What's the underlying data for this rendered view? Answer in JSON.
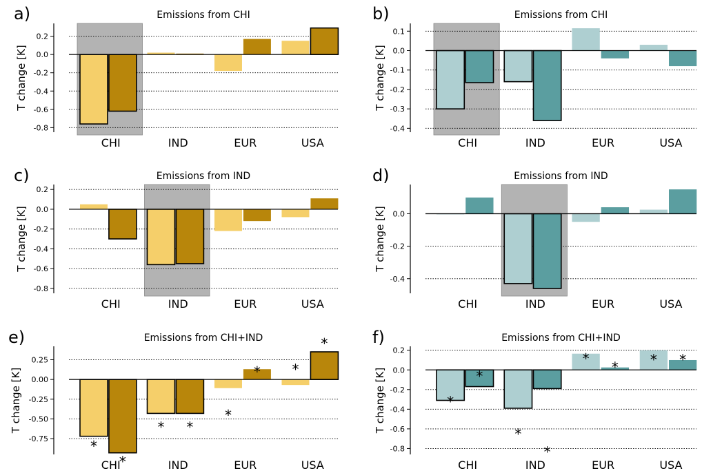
{
  "colors": {
    "gold_light": "#f5cf6a",
    "gold_dark": "#b8860b",
    "teal_light": "#aecfd1",
    "teal_dark": "#5b9ea0",
    "highlight": "#b3b3b3"
  },
  "chart_data": [
    {
      "id": "a",
      "panel_label": "a)",
      "type": "bar",
      "title": "Emissions from CHI",
      "ylabel": "T change [K]",
      "categories": [
        "CHI",
        "IND",
        "EUR",
        "USA"
      ],
      "ylim": [
        -0.85,
        0.34
      ],
      "yticks": [
        -0.8,
        -0.6,
        -0.4,
        -0.2,
        0.0,
        0.2
      ],
      "tick_labels": [
        "-0.8",
        "-0.6",
        "-0.4",
        "-0.2",
        "0.0",
        "0.2"
      ],
      "grid": "horizontal dotted",
      "highlight_category": "CHI",
      "palette": "gold",
      "series": [
        {
          "values": [
            -0.76,
            0.02,
            -0.18,
            0.15
          ],
          "color": "#f5cf6a",
          "outlined": [
            true,
            false,
            false,
            false
          ],
          "stars": [
            false,
            false,
            false,
            false
          ]
        },
        {
          "values": [
            -0.62,
            0.01,
            0.17,
            0.29
          ],
          "color": "#b8860b",
          "outlined": [
            true,
            false,
            false,
            true
          ],
          "stars": [
            false,
            false,
            false,
            false
          ]
        }
      ]
    },
    {
      "id": "b",
      "panel_label": "b)",
      "type": "bar",
      "title": "Emissions from CHI",
      "ylabel": "T change [K]",
      "categories": [
        "CHI",
        "IND",
        "EUR",
        "USA"
      ],
      "ylim": [
        -0.42,
        0.14
      ],
      "yticks": [
        -0.4,
        -0.3,
        -0.2,
        -0.1,
        0.0,
        0.1
      ],
      "tick_labels": [
        "-0.4",
        "-0.3",
        "-0.2",
        "-0.1",
        "0.0",
        "0.1"
      ],
      "grid": "horizontal dotted",
      "highlight_category": "CHI",
      "palette": "teal",
      "series": [
        {
          "values": [
            -0.3,
            -0.16,
            0.115,
            0.03
          ],
          "color": "#aecfd1",
          "outlined": [
            true,
            true,
            false,
            false
          ],
          "stars": [
            false,
            false,
            false,
            false
          ]
        },
        {
          "values": [
            -0.165,
            -0.36,
            -0.04,
            -0.08
          ],
          "color": "#5b9ea0",
          "outlined": [
            true,
            true,
            false,
            false
          ],
          "stars": [
            false,
            false,
            false,
            false
          ]
        }
      ]
    },
    {
      "id": "c",
      "panel_label": "c)",
      "type": "bar",
      "title": "Emissions from IND",
      "ylabel": "T change [K]",
      "categories": [
        "CHI",
        "IND",
        "EUR",
        "USA"
      ],
      "ylim": [
        -0.85,
        0.25
      ],
      "yticks": [
        -0.8,
        -0.6,
        -0.4,
        -0.2,
        0.0,
        0.2
      ],
      "tick_labels": [
        "-0.8",
        "-0.6",
        "-0.4",
        "-0.2",
        "0.0",
        "0.2"
      ],
      "grid": "horizontal dotted",
      "highlight_category": "IND",
      "palette": "gold",
      "series": [
        {
          "values": [
            0.05,
            -0.56,
            -0.22,
            -0.08
          ],
          "color": "#f5cf6a",
          "outlined": [
            false,
            true,
            false,
            false
          ],
          "stars": [
            false,
            false,
            false,
            false
          ]
        },
        {
          "values": [
            -0.3,
            -0.55,
            -0.12,
            0.11
          ],
          "color": "#b8860b",
          "outlined": [
            true,
            true,
            false,
            false
          ],
          "stars": [
            false,
            false,
            false,
            false
          ]
        }
      ]
    },
    {
      "id": "d",
      "panel_label": "d)",
      "type": "bar",
      "title": "Emissions from IND",
      "ylabel": "T change [K]",
      "categories": [
        "CHI",
        "IND",
        "EUR",
        "USA"
      ],
      "ylim": [
        -0.49,
        0.18
      ],
      "yticks": [
        -0.4,
        -0.2,
        0.0
      ],
      "tick_labels": [
        "-0.4",
        "-0.2",
        "0.0"
      ],
      "grid": "horizontal dotted",
      "highlight_category": "IND",
      "palette": "teal",
      "series": [
        {
          "values": [
            -0.002,
            -0.43,
            -0.05,
            0.025
          ],
          "color": "#aecfd1",
          "outlined": [
            false,
            true,
            false,
            false
          ],
          "stars": [
            false,
            false,
            false,
            false
          ]
        },
        {
          "values": [
            0.1,
            -0.46,
            0.04,
            0.15
          ],
          "color": "#5b9ea0",
          "outlined": [
            false,
            true,
            false,
            false
          ],
          "stars": [
            false,
            false,
            false,
            false
          ]
        }
      ]
    },
    {
      "id": "e",
      "panel_label": "e)",
      "type": "bar",
      "title": "Emissions from CHI+IND",
      "ylabel": "T change [K]",
      "categories": [
        "CHI",
        "IND",
        "EUR",
        "USA"
      ],
      "ylim": [
        -0.95,
        0.42
      ],
      "yticks": [
        -0.75,
        -0.5,
        -0.25,
        0.0,
        0.25
      ],
      "tick_labels": [
        "-0.75",
        "-0.50",
        "-0.25",
        "0.00",
        "0.25"
      ],
      "grid": "horizontal dotted",
      "highlight_category": "",
      "palette": "gold",
      "series": [
        {
          "values": [
            -0.72,
            -0.43,
            -0.11,
            -0.07
          ],
          "color": "#f5cf6a",
          "outlined": [
            true,
            true,
            false,
            false
          ],
          "stars": [
            true,
            true,
            true,
            true
          ],
          "star_values": [
            -0.8,
            -0.56,
            -0.41,
            0.17
          ]
        },
        {
          "values": [
            -0.93,
            -0.43,
            0.13,
            0.35
          ],
          "color": "#b8860b",
          "outlined": [
            true,
            true,
            false,
            true
          ],
          "stars": [
            true,
            true,
            true,
            true
          ],
          "star_values": [
            -1.0,
            -0.56,
            0.14,
            0.5
          ]
        }
      ]
    },
    {
      "id": "f",
      "panel_label": "f)",
      "type": "bar",
      "title": "Emissions from CHI+IND",
      "ylabel": "T change [K]",
      "categories": [
        "CHI",
        "IND",
        "EUR",
        "USA"
      ],
      "ylim": [
        -0.86,
        0.24
      ],
      "yticks": [
        -0.8,
        -0.6,
        -0.4,
        -0.2,
        0.0,
        0.2
      ],
      "tick_labels": [
        "-0.8",
        "-0.6",
        "-0.4",
        "-0.2",
        "0.0",
        "0.2"
      ],
      "grid": "horizontal dotted",
      "highlight_category": "",
      "palette": "teal",
      "series": [
        {
          "values": [
            -0.31,
            -0.39,
            0.165,
            0.2
          ],
          "color": "#aecfd1",
          "outlined": [
            true,
            true,
            false,
            false
          ],
          "stars": [
            true,
            true,
            true,
            true
          ],
          "star_values": [
            -0.29,
            -0.62,
            0.15,
            0.14
          ]
        },
        {
          "values": [
            -0.17,
            -0.19,
            0.025,
            0.1
          ],
          "color": "#5b9ea0",
          "outlined": [
            true,
            true,
            false,
            false
          ],
          "stars": [
            true,
            true,
            true,
            true
          ],
          "star_values": [
            -0.03,
            -0.8,
            0.06,
            0.14
          ]
        }
      ]
    }
  ]
}
